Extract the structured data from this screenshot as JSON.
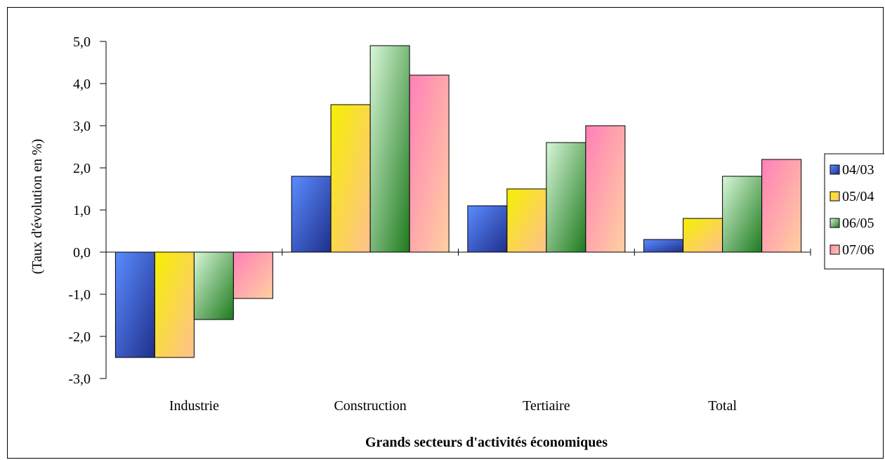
{
  "chart_data": {
    "type": "bar",
    "title": "",
    "xlabel": "Grands secteurs d'activités économiques",
    "ylabel": "(Taux d'évolution en %)",
    "categories": [
      "Industrie",
      "Construction",
      "Tertiaire",
      "Total"
    ],
    "series": [
      {
        "name": "04/03",
        "values": [
          -2.5,
          1.8,
          1.1,
          0.3
        ]
      },
      {
        "name": "05/04",
        "values": [
          -2.5,
          3.5,
          1.5,
          0.8
        ]
      },
      {
        "name": "06/05",
        "values": [
          -1.6,
          4.9,
          2.6,
          1.8
        ]
      },
      {
        "name": "07/06",
        "values": [
          -1.1,
          4.2,
          3.0,
          2.2
        ]
      }
    ],
    "ylim": [
      -3.0,
      5.0
    ],
    "yticks": [
      "-3,0",
      "-2,0",
      "-1,0",
      "0,0",
      "1,0",
      "2,0",
      "3,0",
      "4,0",
      "5,0"
    ],
    "grid": false,
    "legend_position": "right",
    "colors": [
      {
        "dark": "#1f2f8c",
        "light": "#5b8cff"
      },
      {
        "dark": "#f5f000",
        "light": "#ffc090"
      },
      {
        "dark": "#1e7a1e",
        "light": "#d8f7d8"
      },
      {
        "dark": "#ff80b8",
        "light": "#ffd0a0"
      }
    ]
  }
}
